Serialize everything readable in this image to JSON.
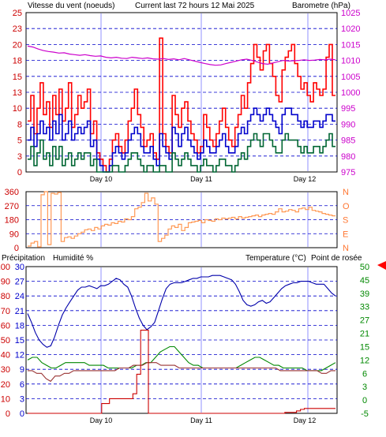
{
  "header": {
    "wind_title": "Vitesse du vent (noeuds)",
    "current_title": "Current last 72 hours 12 Mai 2025",
    "baro_title": "Barometre (hPa)"
  },
  "lower_header": {
    "precip": "Précipitation",
    "humid": "Humidité %",
    "temp": "Temperature (°C)",
    "dew": "Point de rosée"
  },
  "colors": {
    "gust": "#ff0000",
    "wind": "#0000cc",
    "min": "#006633",
    "baro": "#cc00cc",
    "dir": "#ff9955",
    "humidity": "#0000aa",
    "temperature": "#008800",
    "dewpoint": "#993333",
    "rain": "#cc0000",
    "grid": "#0000cc",
    "left_axis": "#cc0000",
    "right_axis_top": "#cc00cc",
    "right_axis_mid": "#ff7733",
    "right_axis_bot": "#008800",
    "daymark": "#c8c8ff",
    "pointer": "#ff0000"
  },
  "chart_data": [
    {
      "type": "line",
      "title": "Vitesse du vent (noeuds)",
      "ylabel": "Vitesse du vent (noeuds)",
      "y2label": "Barometre (hPa)",
      "ylim": [
        0,
        25
      ],
      "y2lim": [
        975,
        1025
      ],
      "yticks": [
        "0",
        "3",
        "5",
        "8",
        "10",
        "13",
        "15",
        "18",
        "20",
        "23",
        "25"
      ],
      "y2ticks": [
        "975",
        "980",
        "985",
        "990",
        "995",
        "1000",
        "1005",
        "1010",
        "1015",
        "1020",
        "1025"
      ],
      "day_labels": [
        "Day 10",
        "Day 11",
        "Day 12"
      ],
      "grid": true,
      "series": [
        {
          "key": "gust",
          "values": [
            8,
            12,
            6,
            10,
            14,
            9,
            11,
            7,
            12,
            9,
            13,
            8,
            10,
            14,
            7,
            9,
            12,
            10,
            11,
            13,
            6,
            8,
            3,
            2,
            1,
            0,
            2,
            5,
            6,
            4,
            3,
            5,
            8,
            10,
            13,
            9,
            7,
            4,
            5,
            6,
            3,
            2,
            21,
            6,
            4,
            3,
            12,
            9,
            7,
            10,
            11,
            8,
            6,
            5,
            3,
            4,
            9,
            7,
            5,
            4,
            6,
            8,
            10,
            7,
            5,
            4,
            7,
            9,
            12,
            10,
            14,
            17,
            20,
            18,
            16,
            19,
            20,
            17,
            15,
            12,
            11,
            16,
            18,
            19,
            20,
            17,
            15,
            13,
            14,
            12,
            11,
            14,
            13,
            12,
            13,
            18,
            20,
            12
          ]
        },
        {
          "key": "wind",
          "values": [
            5,
            7,
            4,
            6,
            8,
            6,
            7,
            5,
            8,
            6,
            9,
            5,
            6,
            8,
            5,
            6,
            7,
            6,
            7,
            8,
            4,
            5,
            2,
            1,
            0,
            0,
            1,
            3,
            4,
            3,
            2,
            3,
            5,
            6,
            7,
            6,
            4,
            3,
            3,
            4,
            2,
            1,
            6,
            4,
            3,
            2,
            7,
            6,
            4,
            6,
            7,
            5,
            4,
            3,
            2,
            3,
            5,
            4,
            3,
            3,
            4,
            5,
            6,
            4,
            3,
            3,
            4,
            6,
            7,
            6,
            8,
            9,
            10,
            9,
            8,
            9,
            10,
            9,
            8,
            7,
            6,
            9,
            10,
            10,
            9,
            9,
            8,
            7,
            8,
            7,
            7,
            8,
            8,
            7,
            8,
            9,
            9,
            8
          ]
        },
        {
          "key": "min",
          "values": [
            2,
            4,
            1,
            3,
            5,
            2,
            3,
            1,
            4,
            2,
            4,
            1,
            2,
            3,
            1,
            2,
            3,
            2,
            3,
            3,
            1,
            2,
            0,
            0,
            0,
            0,
            0,
            1,
            1,
            0,
            0,
            1,
            2,
            3,
            3,
            2,
            1,
            0,
            1,
            1,
            0,
            0,
            1,
            1,
            0,
            0,
            3,
            2,
            1,
            2,
            3,
            2,
            1,
            1,
            0,
            1,
            2,
            1,
            1,
            0,
            1,
            2,
            2,
            1,
            1,
            0,
            1,
            2,
            3,
            2,
            4,
            5,
            6,
            5,
            4,
            6,
            6,
            5,
            4,
            3,
            3,
            5,
            6,
            5,
            5,
            5,
            4,
            3,
            4,
            3,
            3,
            4,
            4,
            3,
            4,
            5,
            6,
            4
          ]
        },
        {
          "key": "baro",
          "values": [
            1014.5,
            1014.2,
            1013.6,
            1013.1,
            1012.8,
            1012.6,
            1012.3,
            1012.4,
            1012.0,
            1011.8,
            1011.6,
            1011.8,
            1011.5,
            1011.3,
            1011.4,
            1011.0,
            1010.8,
            1011.0,
            1010.7,
            1010.6,
            1011.0,
            1010.8,
            1010.6,
            1010.8,
            1010.5,
            1010.4,
            1010.6,
            1010.3,
            1010.5,
            1010.2,
            1010.6,
            1010.2,
            1009.8,
            1009.4,
            1009.0,
            1008.7,
            1008.5,
            1008.6,
            1009.0,
            1009.4,
            1009.8,
            1010.2,
            1010.4,
            1010.0,
            1009.5,
            1009.0,
            1008.8,
            1009.2,
            1009.6,
            1010.0,
            1009.8,
            1009.9,
            1010.0,
            1010.2,
            1010.0,
            1010.1,
            1010.3,
            1010.2,
            1010.4,
            1010.2
          ]
        }
      ]
    },
    {
      "type": "scatter",
      "title": "",
      "ylabel": "",
      "ylim": [
        0,
        360
      ],
      "yticks": [
        "0",
        "90",
        "180",
        "270",
        "360"
      ],
      "y2ticks": [
        "N",
        "E",
        "S",
        "O",
        "N"
      ],
      "day_labels": [],
      "grid": true,
      "series": [
        {
          "key": "dir",
          "values": [
            10,
            30,
            40,
            5,
            340,
            360,
            20,
            350,
            345,
            355,
            40,
            65,
            70,
            60,
            75,
            90,
            100,
            115,
            120,
            110,
            130,
            120,
            140,
            150,
            145,
            160,
            155,
            170,
            165,
            185,
            180,
            200,
            250,
            260,
            290,
            350,
            300,
            320,
            280,
            40,
            60,
            80,
            120,
            140,
            130,
            150,
            110,
            130,
            160,
            165,
            170,
            175,
            160,
            180,
            175,
            170,
            185,
            180,
            190,
            185,
            190,
            195,
            185,
            200,
            190,
            195,
            200,
            205,
            210,
            200,
            210,
            215,
            220,
            215,
            230,
            250,
            230,
            235,
            245,
            240,
            230,
            250,
            255,
            245,
            260,
            240,
            235,
            230,
            220,
            215,
            210,
            205
          ]
        }
      ]
    },
    {
      "type": "line",
      "title": "",
      "ylabel": "Humidité %",
      "y2label": "Temperature (°C)",
      "ylim": [
        0,
        100
      ],
      "y2lim": [
        -5,
        50
      ],
      "yticks": [
        "0",
        "10",
        "20",
        "30",
        "40",
        "50",
        "60",
        "70",
        "80",
        "90",
        "100"
      ],
      "y2ticks": [
        "-5",
        "0",
        "3",
        "6",
        "12",
        "15",
        "21",
        "27",
        "33",
        "39",
        "45",
        "50"
      ],
      "rain_ticks": [
        "0",
        "3",
        "6",
        "9",
        "12",
        "15",
        "18",
        "21",
        "24",
        "27",
        "30"
      ],
      "day_labels": [
        "Day 10",
        "Day 11",
        "Day 12"
      ],
      "grid": true,
      "series": [
        {
          "key": "humidity",
          "values": [
            68,
            62,
            55,
            50,
            47,
            45,
            46,
            52,
            60,
            67,
            72,
            76,
            80,
            84,
            86,
            86,
            87,
            86,
            85,
            87,
            87,
            88,
            90,
            92,
            91,
            88,
            86,
            80,
            72,
            65,
            60,
            57,
            59,
            62,
            70,
            78,
            85,
            88,
            89,
            89,
            89,
            90,
            91,
            92,
            92,
            93,
            93,
            93,
            94,
            94,
            94,
            93,
            92,
            91,
            88,
            83,
            77,
            74,
            73,
            74,
            76,
            77,
            75,
            76,
            79,
            82,
            85,
            87,
            88,
            89,
            89,
            90,
            90,
            90,
            89,
            88,
            88,
            88,
            85,
            82,
            80
          ]
        },
        {
          "key": "temperature",
          "values": [
            15,
            16,
            16,
            14,
            13,
            12,
            12,
            13,
            14,
            14,
            14,
            14,
            14,
            13,
            13,
            13,
            13,
            12,
            12,
            12,
            12,
            12,
            12,
            13,
            13,
            14,
            14,
            16,
            18,
            19,
            20,
            20,
            18,
            16,
            14,
            13,
            13,
            12,
            12,
            12,
            12,
            12,
            12,
            12,
            12,
            13,
            14,
            15,
            16,
            16,
            15,
            14,
            13,
            13,
            12,
            12,
            12,
            12,
            12,
            11,
            11,
            11,
            11,
            12,
            13,
            14
          ]
        },
        {
          "key": "dewpoint",
          "values": [
            11,
            11,
            10,
            10,
            8,
            7,
            9,
            9,
            10,
            10,
            11,
            11,
            11,
            11,
            11,
            11,
            11,
            11,
            11,
            11,
            12,
            12,
            12,
            13,
            13,
            13,
            14,
            14,
            14,
            13,
            13,
            13,
            13,
            12,
            12,
            12,
            12,
            12,
            12,
            12,
            12,
            12,
            12,
            12,
            12,
            12,
            12,
            12,
            12,
            12,
            12,
            12,
            12,
            12,
            12,
            11,
            11,
            11,
            11,
            11,
            11,
            11,
            11,
            11,
            10,
            10,
            11,
            11
          ]
        },
        {
          "key": "rain",
          "values": [
            0,
            0,
            0,
            0,
            0,
            0,
            0,
            0,
            0,
            0,
            0,
            0,
            0,
            0,
            0,
            0,
            0,
            0,
            0,
            2,
            2,
            3,
            3,
            3,
            3,
            3,
            3,
            4,
            8,
            17,
            17,
            0,
            0,
            0,
            0,
            0,
            0,
            0,
            0,
            0,
            0,
            0,
            0,
            0,
            0,
            0,
            0,
            0,
            0,
            0,
            0,
            0,
            0,
            0,
            0,
            0,
            0,
            0,
            0,
            0,
            0,
            0,
            0,
            0,
            0,
            0,
            0.2,
            0.2,
            0.2,
            0.5,
            0.8,
            1,
            1,
            1,
            1,
            1,
            1,
            1,
            1
          ]
        }
      ]
    }
  ]
}
